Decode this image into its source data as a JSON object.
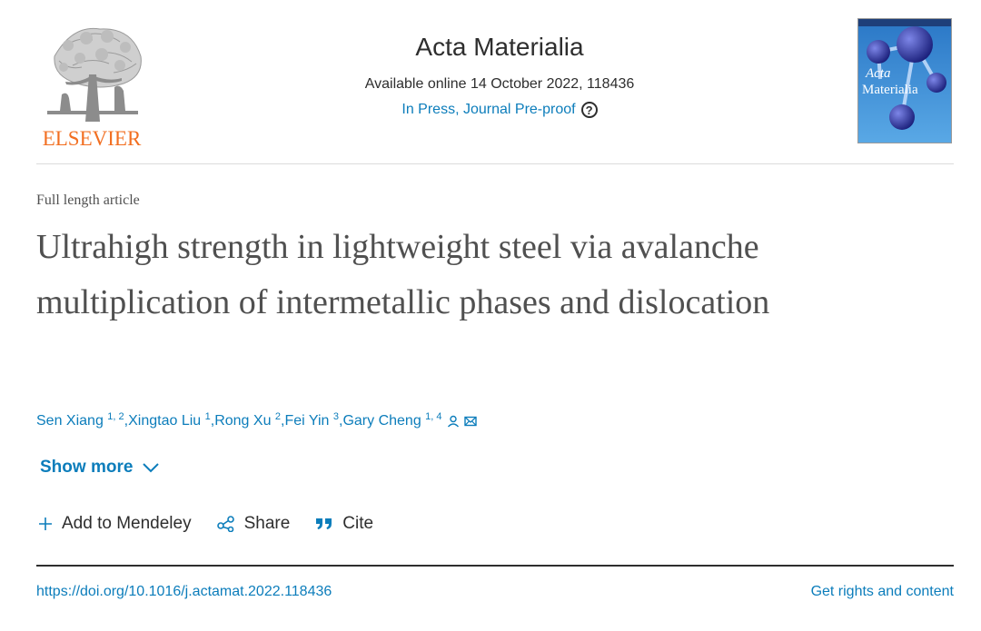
{
  "publisher": {
    "name": "ELSEVIER",
    "brand_color": "#f26f21"
  },
  "journal": {
    "title": "Acta Materialia",
    "availability": "Available online 14 October 2022, 118436",
    "status": "In Press, Journal Pre-proof",
    "help_icon": "?",
    "cover": {
      "line1": "Acta",
      "line2": "Materialia"
    }
  },
  "article": {
    "type": "Full length article",
    "title": "Ultrahigh strength in lightweight steel via avalanche multiplication of intermetallic phases and dislocation"
  },
  "authors": [
    {
      "name": "Sen Xiang",
      "aff": "1, 2",
      "sep": ", "
    },
    {
      "name": "Xingtao Liu",
      "aff": "1",
      "sep": ", "
    },
    {
      "name": "Rong Xu",
      "aff": "2",
      "sep": ", "
    },
    {
      "name": "Fei Yin",
      "aff": "3",
      "sep": ", "
    },
    {
      "name": "Gary Cheng",
      "aff": "1, 4",
      "sep": ""
    }
  ],
  "show_more": "Show more",
  "actions": {
    "mendeley": "Add to Mendeley",
    "share": "Share",
    "cite": "Cite"
  },
  "footer": {
    "doi": "https://doi.org/10.1016/j.actamat.2022.118436",
    "rights": "Get rights and content"
  },
  "colors": {
    "link": "#0c7dbb",
    "text": "#2e2e2e",
    "title": "#505050"
  }
}
